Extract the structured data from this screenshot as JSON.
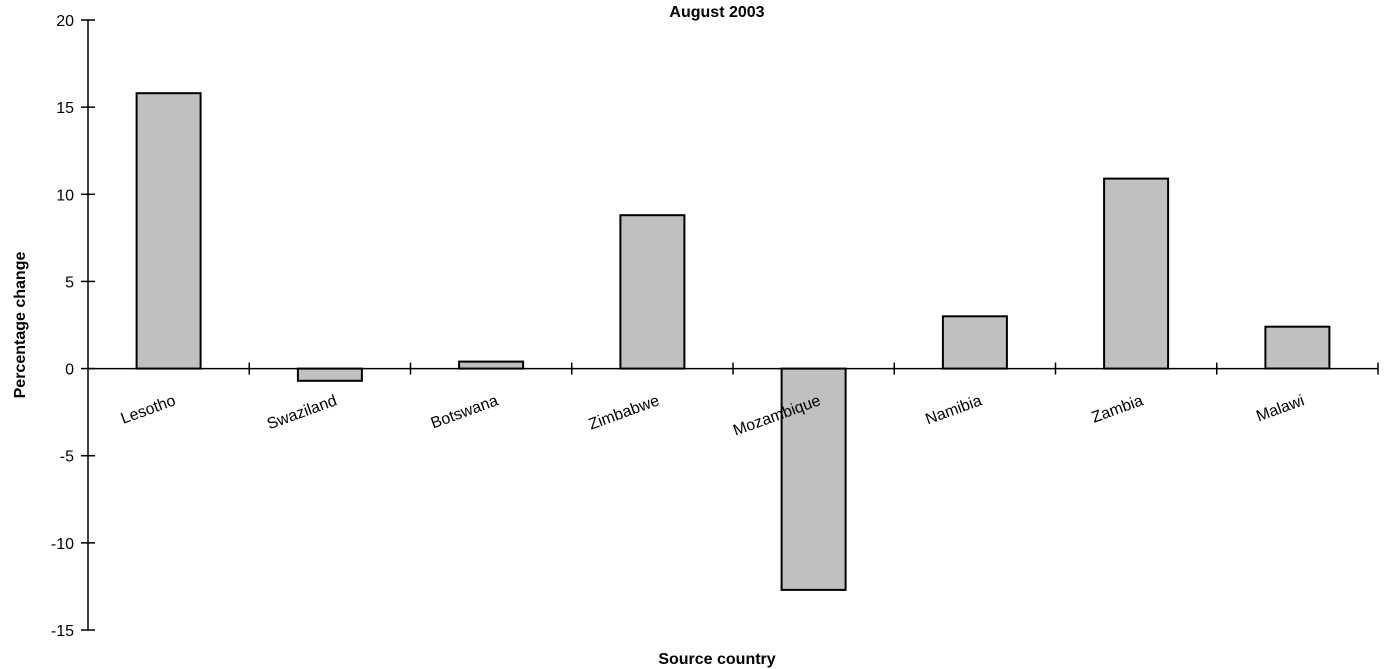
{
  "chart_data": {
    "type": "bar",
    "title": "August 2003",
    "xlabel": "Source country",
    "ylabel": "Percentage change",
    "categories": [
      "Lesotho",
      "Swaziland",
      "Botswana",
      "Zimbabwe",
      "Mozambique",
      "Namibia",
      "Zambia",
      "Malawi"
    ],
    "series": [
      {
        "values": [
          15.8,
          -0.7,
          0.4,
          8.8,
          -12.7,
          3.0,
          10.9,
          2.4
        ]
      }
    ],
    "ylim": [
      -15,
      20
    ],
    "yticks": [
      -15,
      -10,
      -5,
      0,
      5,
      10,
      15,
      20
    ],
    "ytick_labels": [
      "-15",
      "-10",
      "-5",
      "0",
      "5",
      "10",
      "15",
      "20"
    ],
    "grid": false,
    "legend": "none",
    "bar_color": "#C0C0C0",
    "bar_stroke": "#000000"
  }
}
